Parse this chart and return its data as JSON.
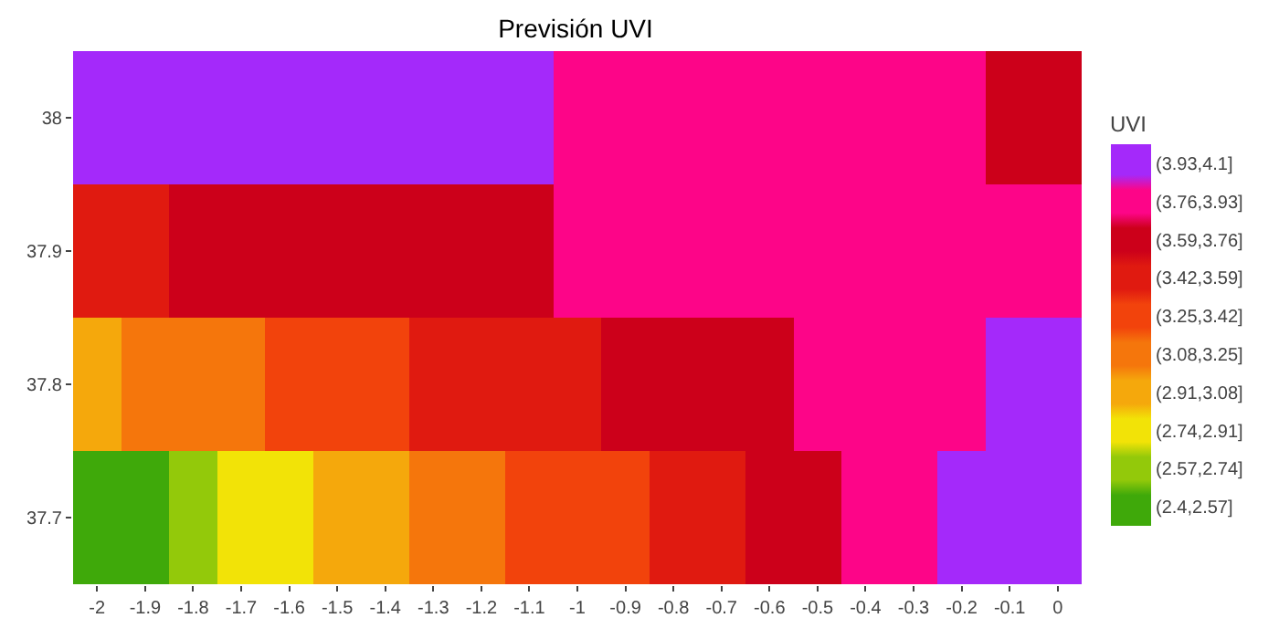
{
  "chart_data": {
    "type": "heatmap",
    "title": "Previsión UVI",
    "clabel": "UVI",
    "categories": [
      "-2",
      "-1.9",
      "-1.8",
      "-1.7",
      "-1.6",
      "-1.5",
      "-1.4",
      "-1.3",
      "-1.2",
      "-1.1",
      "-1",
      "-0.9",
      "-0.8",
      "-0.7",
      "-0.6",
      "-0.5",
      "-0.4",
      "-0.3",
      "-0.2",
      "-0.1",
      "0"
    ],
    "y_categories": [
      "38",
      "37.9",
      "37.8",
      "37.7"
    ],
    "cells": [
      [
        4.015,
        4.015,
        4.015,
        4.015,
        4.015,
        4.015,
        4.015,
        4.015,
        4.015,
        4.015,
        3.845,
        3.845,
        3.845,
        3.845,
        3.845,
        3.845,
        3.845,
        3.845,
        3.845,
        3.675,
        3.675
      ],
      [
        3.505,
        3.505,
        3.675,
        3.675,
        3.675,
        3.675,
        3.675,
        3.675,
        3.675,
        3.675,
        3.845,
        3.845,
        3.845,
        3.845,
        3.845,
        3.845,
        3.845,
        3.845,
        3.845,
        3.845,
        3.845
      ],
      [
        2.995,
        3.165,
        3.165,
        3.165,
        3.335,
        3.335,
        3.335,
        3.505,
        3.505,
        3.505,
        3.505,
        3.675,
        3.675,
        3.675,
        3.675,
        3.845,
        3.845,
        3.845,
        3.845,
        4.015,
        4.015
      ],
      [
        2.485,
        2.485,
        2.655,
        2.825,
        2.825,
        2.995,
        2.995,
        3.165,
        3.165,
        3.335,
        3.335,
        3.335,
        3.505,
        3.505,
        3.675,
        3.675,
        3.845,
        3.845,
        4.015,
        4.015,
        4.015
      ]
    ],
    "clim": [
      2.4,
      4.1
    ],
    "cticks": [
      {
        "value": 2.485,
        "label": "(2.4,2.57]"
      },
      {
        "value": 2.655,
        "label": "(2.57,2.74]"
      },
      {
        "value": 2.825,
        "label": "(2.74,2.91]"
      },
      {
        "value": 2.995,
        "label": "(2.91,3.08]"
      },
      {
        "value": 3.165,
        "label": "(3.08,3.25]"
      },
      {
        "value": 3.335,
        "label": "(3.25,3.42]"
      },
      {
        "value": 3.505,
        "label": "(3.42,3.59]"
      },
      {
        "value": 3.675,
        "label": "(3.59,3.76]"
      },
      {
        "value": 3.845,
        "label": "(3.76,3.93]"
      },
      {
        "value": 4.015,
        "label": "(3.93,4.1]"
      }
    ],
    "colors": [
      "#3fa90a",
      "#93c90a",
      "#f2e307",
      "#f5a80c",
      "#f5760c",
      "#f2430c",
      "#e01a10",
      "#cc001a",
      "#fd0588",
      "#a429fa"
    ]
  }
}
